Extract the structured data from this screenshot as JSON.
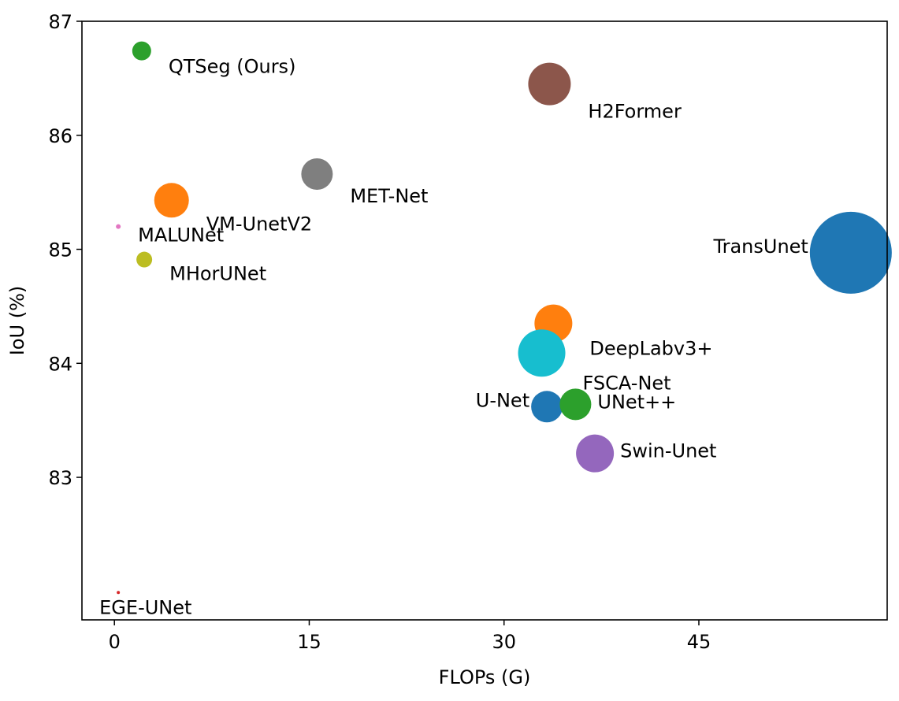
{
  "chart_data": {
    "type": "scatter",
    "title": "",
    "xlabel": "FLOPs (G)",
    "ylabel": "IoU (%)",
    "xlim": [
      -2.5,
      59.5
    ],
    "ylim": [
      81.75,
      87.0
    ],
    "xticks": [
      0,
      15,
      30,
      45
    ],
    "yticks": [
      83,
      84,
      85,
      86,
      87
    ],
    "grid": false,
    "legend": "none",
    "points": [
      {
        "label": "QTSeg (Ours)",
        "x": 2.1,
        "y": 86.74,
        "size": 12,
        "color": "#2ca02c",
        "label_pos": "below-right"
      },
      {
        "label": "H2Former",
        "x": 33.5,
        "y": 86.45,
        "size": 27,
        "color": "#8c564b",
        "label_pos": "below-right"
      },
      {
        "label": "MET-Net",
        "x": 15.6,
        "y": 85.66,
        "size": 20,
        "color": "#7f7f7f",
        "label_pos": "below-right"
      },
      {
        "label": "VM-UnetV2",
        "x": 4.4,
        "y": 85.43,
        "size": 22,
        "color": "#ff7f0e",
        "label_pos": "below-right"
      },
      {
        "label": "MALUNet",
        "x": 0.3,
        "y": 85.2,
        "size": 3,
        "color": "#e377c2",
        "label_pos": "below-right"
      },
      {
        "label": "MHorUNet",
        "x": 2.3,
        "y": 84.91,
        "size": 10,
        "color": "#bcbd22",
        "label_pos": "below-right"
      },
      {
        "label": "TransUnet",
        "x": 56.7,
        "y": 84.97,
        "size": 52,
        "color": "#1f77b4",
        "label_pos": "left"
      },
      {
        "label": "DeepLabv3+",
        "x": 33.8,
        "y": 84.35,
        "size": 24,
        "color": "#ff7f0e",
        "label_pos": "below-right"
      },
      {
        "label": "FSCA-Net",
        "x": 32.9,
        "y": 84.09,
        "size": 30,
        "color": "#17becf",
        "label_pos": "below-right"
      },
      {
        "label": "U-Net",
        "x": 33.3,
        "y": 83.62,
        "size": 20,
        "color": "#1f77b4",
        "label_pos": "left"
      },
      {
        "label": "UNet++",
        "x": 35.5,
        "y": 83.64,
        "size": 20,
        "color": "#2ca02c",
        "label_pos": "right"
      },
      {
        "label": "Swin-Unet",
        "x": 37.0,
        "y": 83.21,
        "size": 24,
        "color": "#9467bd",
        "label_pos": "right"
      },
      {
        "label": "EGE-UNet",
        "x": 0.3,
        "y": 81.99,
        "size": 2,
        "color": "#d62728",
        "label_pos": "below"
      }
    ]
  }
}
